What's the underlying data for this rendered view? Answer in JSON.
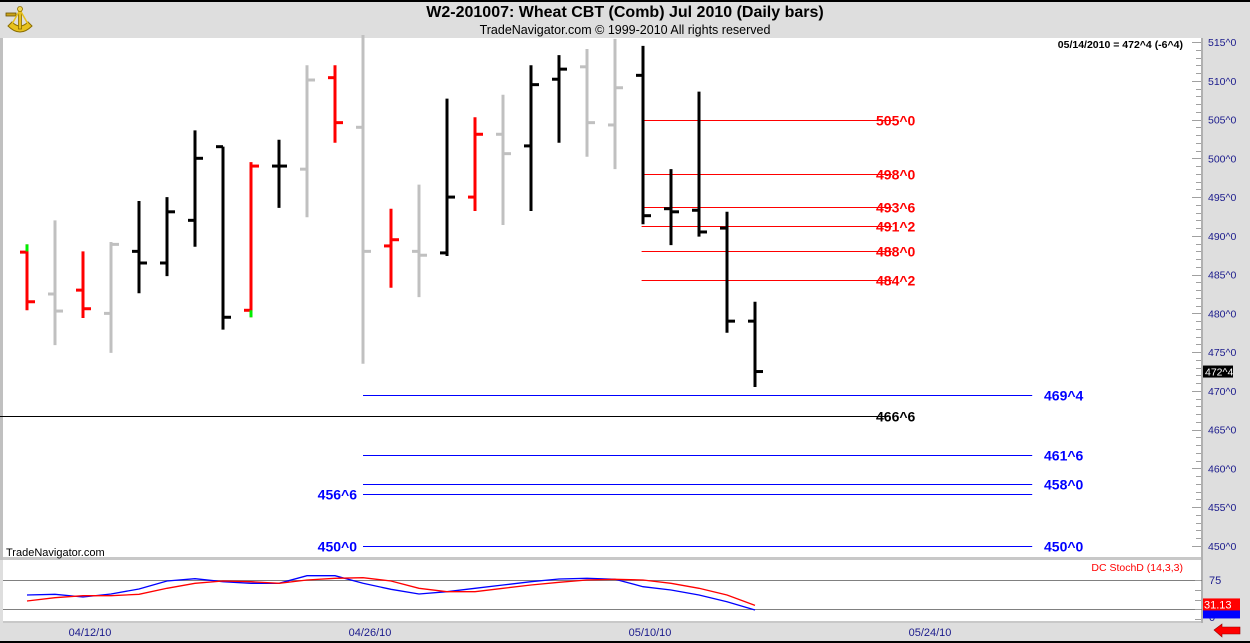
{
  "header": {
    "title": "W2-201007:  Wheat CBT (Comb) Jul 2010  (Daily bars)",
    "subtitle": "TradeNavigator.com © 1999-2010 All rights reserved",
    "last_quote": "05/14/2010 = 472^4 (-6^4)",
    "watermark": "TradeNavigator.com",
    "logo_icon": "sextant-icon"
  },
  "colors": {
    "up": "#000000",
    "down": "#ff0000",
    "neutral": "#c0c0c0",
    "highlight": "#00ee00",
    "support": "#0000ff",
    "resistance": "#ff0000",
    "pivot": "#000000",
    "axis_text": "#1a1a8c"
  },
  "chart_data": [
    {
      "type": "ohlc",
      "title": "W2-201007:  Wheat CBT (Comb) Jul 2010  (Daily bars)",
      "ylim": [
        450,
        515
      ],
      "yticks": [
        {
          "value": 515,
          "label": "515^0"
        },
        {
          "value": 510,
          "label": "510^0"
        },
        {
          "value": 505,
          "label": "505^0"
        },
        {
          "value": 500,
          "label": "500^0"
        },
        {
          "value": 495,
          "label": "495^0"
        },
        {
          "value": 490,
          "label": "490^0"
        },
        {
          "value": 485,
          "label": "485^0"
        },
        {
          "value": 480,
          "label": "480^0"
        },
        {
          "value": 475,
          "label": "475^0"
        },
        {
          "value": 470,
          "label": "470^0"
        },
        {
          "value": 465,
          "label": "465^0"
        },
        {
          "value": 460,
          "label": "460^0"
        },
        {
          "value": 455,
          "label": "455^0"
        },
        {
          "value": 450,
          "label": "450^0"
        }
      ],
      "current_price": {
        "value": 472.5,
        "label": "472^4"
      },
      "xticks": [
        {
          "bar": 2,
          "label": "04/12/10"
        },
        {
          "bar": 12,
          "label": "04/26/10"
        },
        {
          "bar": 22,
          "label": "05/10/10"
        },
        {
          "bar": 32,
          "label": "05/24/10"
        }
      ],
      "bars": [
        {
          "o": 487.9,
          "h": 488.9,
          "l": 480.4,
          "c": 481.5,
          "color": "down",
          "highlight": "top"
        },
        {
          "o": 482.5,
          "h": 492.0,
          "l": 475.9,
          "c": 480.3,
          "color": "neutral"
        },
        {
          "o": 483.0,
          "h": 488.0,
          "l": 479.4,
          "c": 480.6,
          "color": "down"
        },
        {
          "o": 480.0,
          "h": 489.2,
          "l": 474.9,
          "c": 488.9,
          "color": "neutral"
        },
        {
          "o": 488.0,
          "h": 494.5,
          "l": 482.6,
          "c": 486.5,
          "color": "up"
        },
        {
          "o": 486.5,
          "h": 495.0,
          "l": 484.8,
          "c": 493.1,
          "color": "up"
        },
        {
          "o": 492.0,
          "h": 503.6,
          "l": 488.6,
          "c": 500.0,
          "color": "up"
        },
        {
          "o": 501.5,
          "h": 501.5,
          "l": 477.9,
          "c": 479.5,
          "color": "up"
        },
        {
          "o": 480.4,
          "h": 499.5,
          "l": 479.5,
          "c": 499.0,
          "color": "down",
          "highlight": "bottom"
        },
        {
          "o": 499.0,
          "h": 502.4,
          "l": 493.6,
          "c": 499.0,
          "color": "up"
        },
        {
          "o": 498.6,
          "h": 512.0,
          "l": 492.4,
          "c": 510.1,
          "color": "neutral"
        },
        {
          "o": 510.4,
          "h": 512.0,
          "l": 502.0,
          "c": 504.6,
          "color": "down"
        },
        {
          "o": 504.0,
          "h": 515.9,
          "l": 473.5,
          "c": 488.0,
          "color": "neutral"
        },
        {
          "o": 488.7,
          "h": 493.5,
          "l": 483.3,
          "c": 489.5,
          "color": "down"
        },
        {
          "o": 488.0,
          "h": 496.6,
          "l": 482.1,
          "c": 487.5,
          "color": "neutral"
        },
        {
          "o": 487.8,
          "h": 507.7,
          "l": 487.4,
          "c": 495.0,
          "color": "up"
        },
        {
          "o": 495.0,
          "h": 505.3,
          "l": 493.2,
          "c": 503.1,
          "color": "down"
        },
        {
          "o": 503.1,
          "h": 508.2,
          "l": 491.4,
          "c": 500.6,
          "color": "neutral"
        },
        {
          "o": 501.6,
          "h": 512.0,
          "l": 493.2,
          "c": 509.5,
          "color": "up"
        },
        {
          "o": 510.2,
          "h": 513.3,
          "l": 502.0,
          "c": 511.5,
          "color": "up"
        },
        {
          "o": 511.8,
          "h": 514.1,
          "l": 500.2,
          "c": 504.6,
          "color": "neutral"
        },
        {
          "o": 504.3,
          "h": 515.4,
          "l": 498.6,
          "c": 509.1,
          "color": "neutral"
        },
        {
          "o": 510.7,
          "h": 514.5,
          "l": 491.5,
          "c": 492.6,
          "color": "up"
        },
        {
          "o": 493.5,
          "h": 498.6,
          "l": 488.8,
          "c": 493.1,
          "color": "up"
        },
        {
          "o": 493.3,
          "h": 508.6,
          "l": 489.9,
          "c": 490.5,
          "color": "up"
        },
        {
          "o": 491.0,
          "h": 493.1,
          "l": 477.5,
          "c": 479.0,
          "color": "up"
        },
        {
          "o": 479.0,
          "h": 481.5,
          "l": 470.5,
          "c": 472.5,
          "color": "up"
        }
      ],
      "levels": [
        {
          "value": 505.0,
          "label": "505^0",
          "kind": "resistance",
          "from_bar": 21.95,
          "to_bar": 30.9,
          "label_side": "right"
        },
        {
          "value": 498.0,
          "label": "498^0",
          "kind": "resistance",
          "from_bar": 21.95,
          "to_bar": 30.9,
          "label_side": "right"
        },
        {
          "value": 493.75,
          "label": "493^6",
          "kind": "resistance",
          "from_bar": 21.95,
          "to_bar": 30.9,
          "label_side": "right"
        },
        {
          "value": 491.25,
          "label": "491^2",
          "kind": "resistance",
          "from_bar": 21.95,
          "to_bar": 30.9,
          "label_side": "right"
        },
        {
          "value": 488.0,
          "label": "488^0",
          "kind": "resistance",
          "from_bar": 21.95,
          "to_bar": 30.9,
          "label_side": "right"
        },
        {
          "value": 484.25,
          "label": "484^2",
          "kind": "resistance",
          "from_bar": 21.95,
          "to_bar": 30.9,
          "label_side": "right"
        },
        {
          "value": 469.5,
          "label": "469^4",
          "kind": "support",
          "from_bar": 12,
          "to_bar": 35.9,
          "label_side": "right"
        },
        {
          "value": 466.75,
          "label": "466^6",
          "kind": "pivot",
          "from_bar": -1,
          "to_bar": 30.75,
          "label_side": "right"
        },
        {
          "value": 461.75,
          "label": "461^6",
          "kind": "support",
          "from_bar": 12,
          "to_bar": 35.9,
          "label_side": "right"
        },
        {
          "value": 458.0,
          "label": "458^0",
          "kind": "support",
          "from_bar": 12,
          "to_bar": 35.9,
          "label_side": "right"
        },
        {
          "value": 456.75,
          "label": "456^6",
          "kind": "support",
          "from_bar": 12,
          "to_bar": 35.9,
          "label_side": "left"
        },
        {
          "value": 450.0,
          "label": "450^0",
          "kind": "support",
          "from_bar": 12,
          "to_bar": 35.9,
          "label_side": "both"
        }
      ]
    },
    {
      "type": "line",
      "title": "DC StochD (14,3,3)",
      "ylim": [
        0,
        100
      ],
      "hlines": [
        75,
        25
      ],
      "yticks": [
        {
          "value": 75,
          "label": "75"
        },
        {
          "value": 0,
          "label": "0"
        }
      ],
      "series": [
        {
          "name": "fast",
          "color": "#0000ff",
          "values": [
            49.1,
            50.3,
            45.7,
            50.9,
            59.5,
            73.3,
            77.2,
            72.1,
            69.3,
            69.3,
            82.4,
            82.4,
            69.3,
            59.0,
            50.9,
            54.8,
            60.7,
            66.4,
            72.1,
            76.7,
            77.9,
            76.2,
            63.4,
            57.8,
            49.1,
            37.6,
            23.3
          ]
        },
        {
          "name": "slow",
          "color": "#ff0000",
          "values": [
            38.8,
            44.5,
            47.9,
            47.9,
            50.3,
            60.7,
            69.3,
            73.3,
            72.1,
            69.3,
            75.0,
            77.9,
            79.0,
            73.3,
            60.7,
            54.8,
            54.8,
            60.7,
            66.4,
            71.0,
            75.0,
            76.2,
            75.0,
            69.3,
            60.7,
            49.1,
            31.13
          ]
        }
      ],
      "last_value_label": "31.13"
    }
  ]
}
